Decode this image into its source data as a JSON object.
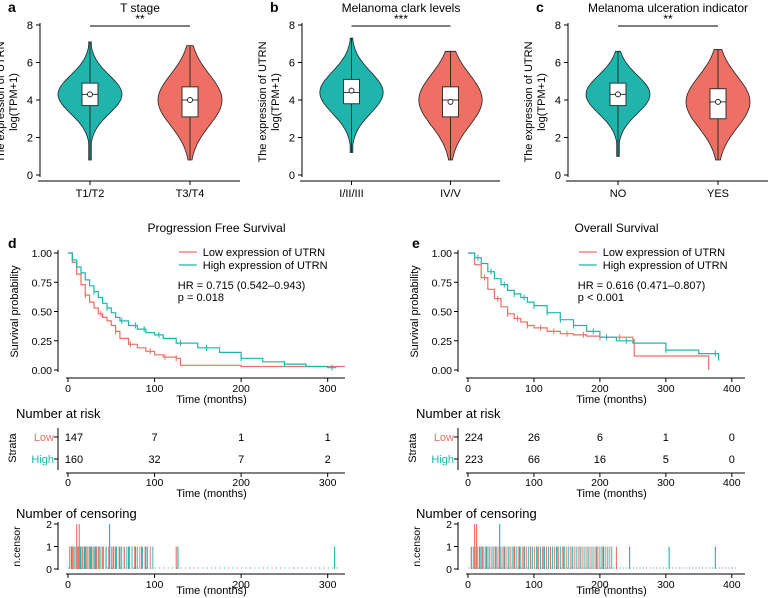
{
  "figure": {
    "colors": {
      "teal": "#1fb5ad",
      "salmon": "#ee6f64",
      "axis": "#000000"
    }
  },
  "chart_data": [
    {
      "panel": "a",
      "type": "violin",
      "title": "T stage",
      "ylabel": [
        "The expression of UTRN",
        "log(TPM+1)"
      ],
      "categories": [
        "T1/T2",
        "T3/T4"
      ],
      "ylim": [
        0,
        8
      ],
      "yticks": [
        0,
        2,
        4,
        6,
        8
      ],
      "significance": "**",
      "groups": [
        {
          "name": "T1/T2",
          "min": 0.8,
          "q1": 3.7,
          "median": 4.3,
          "q3": 4.9,
          "max": 7.1,
          "mean": 4.3,
          "color": "#1fb5ad"
        },
        {
          "name": "T3/T4",
          "min": 0.8,
          "q1": 3.1,
          "median": 4.0,
          "q3": 4.7,
          "max": 6.9,
          "mean": 4.0,
          "color": "#ee6f64"
        }
      ]
    },
    {
      "panel": "b",
      "type": "violin",
      "title": "Melanoma clark levels",
      "ylabel": [
        "The expression of UTRN",
        "log(TPM+1)"
      ],
      "categories": [
        "I/II/III",
        "IV/V"
      ],
      "ylim": [
        0,
        8
      ],
      "yticks": [
        0,
        2,
        4,
        6,
        8
      ],
      "significance": "***",
      "groups": [
        {
          "name": "I/II/III",
          "min": 1.2,
          "q1": 3.8,
          "median": 4.4,
          "q3": 5.1,
          "max": 7.3,
          "mean": 4.5,
          "color": "#1fb5ad"
        },
        {
          "name": "IV/V",
          "min": 0.8,
          "q1": 3.1,
          "median": 4.0,
          "q3": 4.7,
          "max": 6.6,
          "mean": 3.9,
          "color": "#ee6f64"
        }
      ]
    },
    {
      "panel": "c",
      "type": "violin",
      "title": "Melanoma ulceration indicator",
      "ylabel": [
        "The expression of UTRN",
        "log(TPM+1)"
      ],
      "categories": [
        "NO",
        "YES"
      ],
      "ylim": [
        0,
        8
      ],
      "yticks": [
        0,
        2,
        4,
        6,
        8
      ],
      "significance": "**",
      "groups": [
        {
          "name": "NO",
          "min": 1.0,
          "q1": 3.7,
          "median": 4.3,
          "q3": 4.9,
          "max": 6.6,
          "mean": 4.3,
          "color": "#1fb5ad"
        },
        {
          "name": "YES",
          "min": 0.8,
          "q1": 3.0,
          "median": 3.9,
          "q3": 4.6,
          "max": 6.7,
          "mean": 3.9,
          "color": "#ee6f64"
        }
      ]
    },
    {
      "panel": "d",
      "type": "line",
      "title": "Progression Free Survival",
      "xlabel": "Time (months)",
      "ylabel": "Survival probability",
      "xlim": [
        0,
        320
      ],
      "ylim": [
        0,
        1
      ],
      "xticks": [
        0,
        100,
        200,
        300
      ],
      "yticks": [
        0.0,
        0.25,
        0.5,
        0.75,
        1.0
      ],
      "ytick_labels": [
        "0.00",
        "0.25",
        "0.50",
        "0.75",
        "1.00"
      ],
      "legend": [
        "Low expression of UTRN",
        "High expression of UTRN"
      ],
      "annotation": [
        "HR = 0.715 (0.542–0.943)",
        "p = 0.018"
      ],
      "series": [
        {
          "name": "Low expression of UTRN",
          "color": "#ee6f64",
          "x": [
            0,
            5,
            10,
            15,
            20,
            25,
            30,
            35,
            40,
            45,
            50,
            55,
            60,
            70,
            80,
            90,
            100,
            110,
            125,
            130,
            200,
            320
          ],
          "y": [
            1.0,
            0.92,
            0.82,
            0.73,
            0.64,
            0.58,
            0.53,
            0.48,
            0.45,
            0.42,
            0.38,
            0.33,
            0.27,
            0.22,
            0.19,
            0.16,
            0.13,
            0.11,
            0.1,
            0.04,
            0.03,
            0.03
          ],
          "censor_x": [
            20,
            38,
            55,
            72,
            95,
            112,
            125
          ]
        },
        {
          "name": "High expression of UTRN",
          "color": "#1fb5ad",
          "x": [
            0,
            5,
            10,
            15,
            20,
            25,
            30,
            35,
            40,
            45,
            50,
            55,
            60,
            70,
            80,
            90,
            100,
            110,
            125,
            150,
            175,
            200,
            225,
            250,
            275,
            300,
            310
          ],
          "y": [
            1.0,
            0.94,
            0.88,
            0.83,
            0.77,
            0.72,
            0.67,
            0.62,
            0.57,
            0.53,
            0.49,
            0.45,
            0.42,
            0.38,
            0.35,
            0.32,
            0.3,
            0.27,
            0.23,
            0.19,
            0.15,
            0.1,
            0.07,
            0.05,
            0.03,
            0.02,
            0.02
          ],
          "censor_x": [
            30,
            45,
            62,
            78,
            88,
            105,
            130,
            160,
            200,
            250,
            305
          ]
        }
      ],
      "risk_table": {
        "title": "Number at risk",
        "strata_label": "Strata",
        "rows": [
          {
            "label": "Low",
            "color": "#ee6f64",
            "values": [
              147,
              7,
              1,
              1
            ]
          },
          {
            "label": "High",
            "color": "#1fb5ad",
            "values": [
              160,
              32,
              7,
              2
            ]
          }
        ],
        "times": [
          0,
          100,
          200,
          300
        ],
        "xlabel": "Time (months)"
      },
      "censoring": {
        "title": "Number of censoring",
        "ylabel": "n.censor",
        "yticks": [
          0,
          1,
          2
        ],
        "xlabel": "Time (months)",
        "events": [
          {
            "x": 2,
            "n": 1,
            "s": "low"
          },
          {
            "x": 4,
            "n": 1,
            "s": "high"
          },
          {
            "x": 6,
            "n": 1,
            "s": "low"
          },
          {
            "x": 8,
            "n": 1,
            "s": "high"
          },
          {
            "x": 10,
            "n": 2,
            "s": "low"
          },
          {
            "x": 12,
            "n": 1,
            "s": "low"
          },
          {
            "x": 13,
            "n": 2,
            "s": "low"
          },
          {
            "x": 15,
            "n": 1,
            "s": "high"
          },
          {
            "x": 17,
            "n": 1,
            "s": "low"
          },
          {
            "x": 19,
            "n": 1,
            "s": "high"
          },
          {
            "x": 21,
            "n": 1,
            "s": "low"
          },
          {
            "x": 23,
            "n": 1,
            "s": "high"
          },
          {
            "x": 25,
            "n": 1,
            "s": "low"
          },
          {
            "x": 27,
            "n": 1,
            "s": "high"
          },
          {
            "x": 29,
            "n": 1,
            "s": "low"
          },
          {
            "x": 31,
            "n": 1,
            "s": "high"
          },
          {
            "x": 33,
            "n": 1,
            "s": "low"
          },
          {
            "x": 36,
            "n": 1,
            "s": "high"
          },
          {
            "x": 40,
            "n": 1,
            "s": "low"
          },
          {
            "x": 44,
            "n": 1,
            "s": "high"
          },
          {
            "x": 48,
            "n": 2,
            "s": "high"
          },
          {
            "x": 52,
            "n": 1,
            "s": "low"
          },
          {
            "x": 55,
            "n": 1,
            "s": "high"
          },
          {
            "x": 60,
            "n": 1,
            "s": "high"
          },
          {
            "x": 65,
            "n": 1,
            "s": "low"
          },
          {
            "x": 70,
            "n": 1,
            "s": "high"
          },
          {
            "x": 78,
            "n": 1,
            "s": "high"
          },
          {
            "x": 85,
            "n": 1,
            "s": "low"
          },
          {
            "x": 90,
            "n": 1,
            "s": "high"
          },
          {
            "x": 125,
            "n": 1,
            "s": "low"
          },
          {
            "x": 127,
            "n": 1,
            "s": "high"
          },
          {
            "x": 308,
            "n": 1,
            "s": "high"
          }
        ]
      }
    },
    {
      "panel": "e",
      "type": "line",
      "title": "Overall Survival",
      "xlabel": "Time (months)",
      "ylabel": "Survival probability",
      "xlim": [
        0,
        420
      ],
      "ylim": [
        0,
        1
      ],
      "xticks": [
        0,
        100,
        200,
        300,
        400
      ],
      "yticks": [
        0.0,
        0.25,
        0.5,
        0.75,
        1.0
      ],
      "ytick_labels": [
        "0.00",
        "0.25",
        "0.50",
        "0.75",
        "1.00"
      ],
      "legend": [
        "Low expression of UTRN",
        "High expression of UTRN"
      ],
      "annotation": [
        "HR = 0.616 (0.471–0.807)",
        "p < 0.001"
      ],
      "series": [
        {
          "name": "Low expression of UTRN",
          "color": "#ee6f64",
          "x": [
            0,
            10,
            20,
            30,
            40,
            50,
            60,
            70,
            80,
            90,
            100,
            120,
            140,
            160,
            180,
            200,
            250,
            252,
            360,
            365
          ],
          "y": [
            1.0,
            0.9,
            0.79,
            0.69,
            0.61,
            0.54,
            0.48,
            0.44,
            0.41,
            0.38,
            0.36,
            0.33,
            0.31,
            0.3,
            0.29,
            0.28,
            0.26,
            0.12,
            0.12,
            0.0
          ],
          "censor_x": [
            25,
            45,
            60,
            75,
            90,
            110,
            130,
            150,
            175,
            200,
            230
          ]
        },
        {
          "name": "High expression of UTRN",
          "color": "#1fb5ad",
          "x": [
            0,
            10,
            20,
            30,
            40,
            50,
            60,
            70,
            80,
            90,
            100,
            120,
            140,
            160,
            180,
            200,
            225,
            250,
            300,
            350,
            380
          ],
          "y": [
            1.0,
            0.96,
            0.91,
            0.84,
            0.78,
            0.73,
            0.68,
            0.65,
            0.62,
            0.58,
            0.55,
            0.49,
            0.43,
            0.38,
            0.33,
            0.28,
            0.25,
            0.23,
            0.17,
            0.14,
            0.08
          ],
          "censor_x": [
            15,
            35,
            55,
            70,
            85,
            100,
            120,
            140,
            160,
            190,
            210,
            240,
            300,
            375
          ]
        }
      ],
      "risk_table": {
        "title": "Number at risk",
        "strata_label": "Strata",
        "rows": [
          {
            "label": "Low",
            "color": "#ee6f64",
            "values": [
              224,
              26,
              6,
              1,
              0
            ]
          },
          {
            "label": "High",
            "color": "#1fb5ad",
            "values": [
              223,
              66,
              16,
              5,
              0
            ]
          }
        ],
        "times": [
          0,
          100,
          200,
          300,
          400
        ],
        "xlabel": "Time (months)"
      },
      "censoring": {
        "title": "Number of censoring",
        "ylabel": "n.censor",
        "yticks": [
          0,
          1,
          2
        ],
        "xlabel": "Time (months)",
        "events": [
          {
            "x": 5,
            "n": 1,
            "s": "high"
          },
          {
            "x": 10,
            "n": 2,
            "s": "low"
          },
          {
            "x": 13,
            "n": 2,
            "s": "low"
          },
          {
            "x": 18,
            "n": 1,
            "s": "high"
          },
          {
            "x": 22,
            "n": 1,
            "s": "low"
          },
          {
            "x": 28,
            "n": 1,
            "s": "high"
          },
          {
            "x": 32,
            "n": 1,
            "s": "low"
          },
          {
            "x": 38,
            "n": 1,
            "s": "high"
          },
          {
            "x": 42,
            "n": 1,
            "s": "low"
          },
          {
            "x": 48,
            "n": 2,
            "s": "high"
          },
          {
            "x": 55,
            "n": 1,
            "s": "low"
          },
          {
            "x": 62,
            "n": 1,
            "s": "high"
          },
          {
            "x": 70,
            "n": 1,
            "s": "low"
          },
          {
            "x": 78,
            "n": 1,
            "s": "high"
          },
          {
            "x": 85,
            "n": 1,
            "s": "low"
          },
          {
            "x": 95,
            "n": 1,
            "s": "high"
          },
          {
            "x": 105,
            "n": 1,
            "s": "low"
          },
          {
            "x": 115,
            "n": 1,
            "s": "high"
          },
          {
            "x": 125,
            "n": 1,
            "s": "low"
          },
          {
            "x": 135,
            "n": 1,
            "s": "high"
          },
          {
            "x": 145,
            "n": 1,
            "s": "low"
          },
          {
            "x": 158,
            "n": 1,
            "s": "high"
          },
          {
            "x": 170,
            "n": 1,
            "s": "low"
          },
          {
            "x": 182,
            "n": 1,
            "s": "high"
          },
          {
            "x": 195,
            "n": 1,
            "s": "low"
          },
          {
            "x": 205,
            "n": 1,
            "s": "high"
          },
          {
            "x": 225,
            "n": 1,
            "s": "low"
          },
          {
            "x": 245,
            "n": 1,
            "s": "high"
          },
          {
            "x": 305,
            "n": 1,
            "s": "high"
          },
          {
            "x": 375,
            "n": 1,
            "s": "high"
          }
        ]
      }
    }
  ],
  "panel_labels": [
    "a",
    "b",
    "c",
    "d",
    "e"
  ]
}
